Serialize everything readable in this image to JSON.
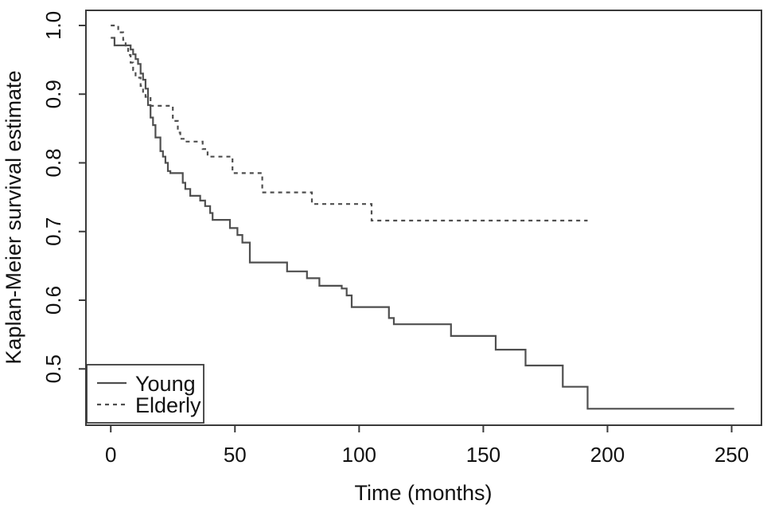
{
  "colors": {
    "background": "#ffffff",
    "axis": "#3a3a3a",
    "curve": "#4f4f4f",
    "text": "#111111"
  },
  "chart_data": {
    "type": "line",
    "variant": "kaplan-meier-step",
    "title": "",
    "xlabel": "Time (months)",
    "ylabel": "Kaplan-Meier survival estimate",
    "xlim": [
      -10,
      262
    ],
    "ylim": [
      0.418,
      1.022
    ],
    "xtick_values": [
      0,
      50,
      100,
      150,
      200,
      250
    ],
    "xtick_labels": [
      "0",
      "50",
      "100",
      "150",
      "200",
      "250"
    ],
    "ytick_values": [
      0.5,
      0.6,
      0.7,
      0.8,
      0.9,
      1.0
    ],
    "ytick_labels": [
      "0.5",
      "0.6",
      "0.7",
      "0.8",
      "0.9",
      "1.0"
    ],
    "grid": false,
    "legend": {
      "position": "bottom-left",
      "entries": [
        {
          "label": "Young",
          "line_style": "solid"
        },
        {
          "label": "Elderly",
          "line_style": "dashed"
        }
      ]
    },
    "series": [
      {
        "name": "Young",
        "line_style": "solid",
        "color": "#4f4f4f",
        "points": [
          [
            0,
            0.982
          ],
          [
            1.5,
            0.971
          ],
          [
            8,
            0.965
          ],
          [
            9,
            0.958
          ],
          [
            10,
            0.951
          ],
          [
            11,
            0.944
          ],
          [
            12,
            0.93
          ],
          [
            13,
            0.921
          ],
          [
            14,
            0.908
          ],
          [
            15,
            0.884
          ],
          [
            16,
            0.866
          ],
          [
            17,
            0.855
          ],
          [
            18,
            0.837
          ],
          [
            20,
            0.817
          ],
          [
            21,
            0.809
          ],
          [
            22,
            0.8
          ],
          [
            23,
            0.788
          ],
          [
            24,
            0.785
          ],
          [
            29,
            0.771
          ],
          [
            30,
            0.762
          ],
          [
            32,
            0.752
          ],
          [
            36,
            0.745
          ],
          [
            38,
            0.737
          ],
          [
            40,
            0.727
          ],
          [
            41,
            0.717
          ],
          [
            48,
            0.705
          ],
          [
            51,
            0.695
          ],
          [
            53,
            0.684
          ],
          [
            56,
            0.655
          ],
          [
            71,
            0.642
          ],
          [
            79,
            0.632
          ],
          [
            84,
            0.621
          ],
          [
            93,
            0.617
          ],
          [
            95,
            0.607
          ],
          [
            97,
            0.59
          ],
          [
            112,
            0.574
          ],
          [
            114,
            0.565
          ],
          [
            137,
            0.548
          ],
          [
            155,
            0.528
          ],
          [
            167,
            0.505
          ],
          [
            182,
            0.474
          ],
          [
            192,
            0.442
          ],
          [
            251,
            0.442
          ]
        ]
      },
      {
        "name": "Elderly",
        "line_style": "dashed",
        "color": "#4f4f4f",
        "points": [
          [
            0,
            1.0
          ],
          [
            3,
            0.99
          ],
          [
            5,
            0.979
          ],
          [
            6,
            0.968
          ],
          [
            7,
            0.957
          ],
          [
            8,
            0.946
          ],
          [
            9,
            0.935
          ],
          [
            10,
            0.924
          ],
          [
            12,
            0.912
          ],
          [
            13,
            0.902
          ],
          [
            14,
            0.896
          ],
          [
            16,
            0.883
          ],
          [
            25,
            0.861
          ],
          [
            27,
            0.844
          ],
          [
            28,
            0.835
          ],
          [
            30,
            0.831
          ],
          [
            37,
            0.82
          ],
          [
            39,
            0.809
          ],
          [
            49,
            0.785
          ],
          [
            61,
            0.757
          ],
          [
            81,
            0.74
          ],
          [
            105,
            0.716
          ],
          [
            192,
            0.716
          ]
        ]
      }
    ]
  }
}
